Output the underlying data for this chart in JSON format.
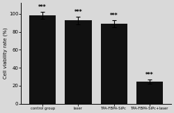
{
  "categories": [
    "control group",
    "laser",
    "TPA-FBPA-SiPc",
    "TPA-FBPA-SiPc+laser"
  ],
  "values": [
    98.5,
    92.5,
    89.0,
    24.5
  ],
  "errors": [
    4.0,
    4.5,
    4.0,
    2.5
  ],
  "bar_color": "#111111",
  "ylabel": "Cell viability rate (%)",
  "ylim": [
    0,
    112
  ],
  "yticks": [
    0,
    20,
    40,
    60,
    80,
    100
  ],
  "significance": [
    "***",
    "***",
    "***",
    "***"
  ],
  "bar_width": 0.75,
  "background_color": "#d9d9d9",
  "plot_bg_color": "#d9d9d9"
}
